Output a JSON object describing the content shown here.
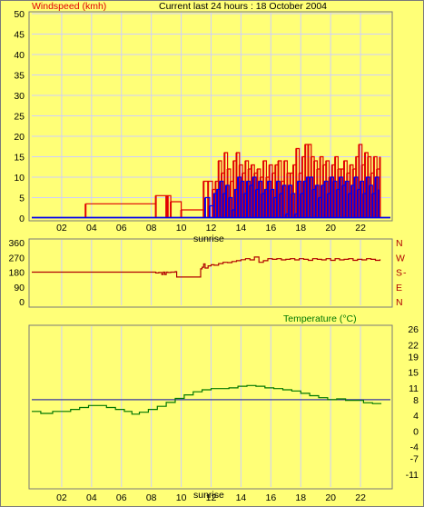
{
  "colors": {
    "background": "#ffff77",
    "grid": "#cfcfff",
    "gust": "#e00000",
    "average": "#0000ee",
    "direction": "#b00000",
    "temperature": "#007700",
    "reference": "#3a3aa0",
    "axis_text": "#000000"
  },
  "header": {
    "title": "Current last 24 hours : 18 October 2004"
  },
  "chart_data": [
    {
      "type": "bar",
      "name": "wind-speed",
      "ylabel": "Windspeed (kmh)",
      "ylim": [
        0,
        50
      ],
      "yticks": [
        0,
        5,
        10,
        15,
        20,
        25,
        30,
        35,
        40,
        45,
        50
      ],
      "xlim": [
        0,
        24
      ],
      "xticks": [
        "02",
        "04",
        "06",
        "08",
        "10",
        "12",
        "14",
        "16",
        "18",
        "20",
        "22"
      ],
      "xtick_values": [
        2,
        4,
        6,
        8,
        10,
        12,
        14,
        16,
        18,
        20,
        22
      ],
      "annotation": "sunrise",
      "annotation_x": 11.7,
      "grid": true,
      "series": [
        {
          "name": "",
          "color_key": "gust",
          "x": [
            3.6,
            8.3,
            9.0,
            9.1,
            9.3,
            10.0,
            11.5,
            11.8,
            12.1,
            12.3,
            12.5,
            12.7,
            12.9,
            13.1,
            13.3,
            13.5,
            13.7,
            13.9,
            14.1,
            14.3,
            14.5,
            14.7,
            14.9,
            15.1,
            15.3,
            15.5,
            15.7,
            15.9,
            16.1,
            16.3,
            16.5,
            16.7,
            16.9,
            17.1,
            17.3,
            17.5,
            17.7,
            17.9,
            18.1,
            18.3,
            18.5,
            18.7,
            18.9,
            19.1,
            19.3,
            19.5,
            19.7,
            19.9,
            20.1,
            20.3,
            20.5,
            20.7,
            20.9,
            21.1,
            21.3,
            21.5,
            21.7,
            21.9,
            22.1,
            22.3,
            22.5,
            22.7,
            22.9,
            23.1,
            23.3
          ],
          "values": [
            3.5,
            5.5,
            5.5,
            5.5,
            4,
            2,
            9,
            9,
            7,
            9,
            14,
            11,
            16,
            12,
            9,
            14,
            16,
            13,
            11,
            14,
            12,
            13,
            11,
            12,
            10,
            14,
            10,
            13,
            11,
            13,
            14,
            9,
            14,
            11,
            11,
            13,
            17,
            11,
            15,
            18,
            18,
            15,
            14,
            12,
            15,
            13,
            14,
            10,
            13,
            15,
            12,
            12,
            14,
            11,
            13,
            12,
            15,
            18,
            13,
            16,
            15,
            11,
            15,
            12,
            15
          ]
        },
        {
          "name": "",
          "color_key": "average",
          "x": [
            11.6,
            11.9,
            12.2,
            12.4,
            12.6,
            12.8,
            13.0,
            13.2,
            13.4,
            13.6,
            13.8,
            14.0,
            14.2,
            14.4,
            14.6,
            14.8,
            15.0,
            15.2,
            15.4,
            15.6,
            15.8,
            16.0,
            16.2,
            16.4,
            16.6,
            16.8,
            17.0,
            17.2,
            17.4,
            17.6,
            17.8,
            18.0,
            18.2,
            18.4,
            18.6,
            18.8,
            19.0,
            19.2,
            19.4,
            19.6,
            19.8,
            20.0,
            20.2,
            20.4,
            20.6,
            20.8,
            21.0,
            21.2,
            21.4,
            21.6,
            21.8,
            22.0,
            22.2,
            22.4,
            22.6,
            22.8,
            23.0,
            23.2
          ],
          "values": [
            5,
            3,
            6,
            7,
            9,
            6,
            8,
            5,
            2,
            7,
            10,
            9,
            6,
            9,
            8,
            10,
            7,
            9,
            6,
            7,
            9,
            7,
            5,
            9,
            6,
            8,
            1,
            8,
            6,
            1,
            9,
            6,
            9,
            10,
            10,
            7,
            8,
            5,
            8,
            9,
            6,
            10,
            9,
            7,
            10,
            8,
            9,
            6,
            8,
            10,
            7,
            9,
            6,
            10,
            8,
            6,
            10,
            7
          ]
        }
      ]
    },
    {
      "type": "line",
      "name": "wind-direction",
      "ylim": [
        0,
        360
      ],
      "yticks": [
        0,
        90,
        180,
        270,
        360
      ],
      "compass_labels": [
        "N",
        "W",
        "S",
        "E",
        "N"
      ],
      "compass_gap": "-",
      "xlim": [
        0,
        24
      ],
      "xtick_values": [
        2,
        4,
        6,
        8,
        10,
        12,
        14,
        16,
        18,
        20,
        22
      ],
      "grid": true,
      "series": [
        {
          "name": "",
          "color_key": "direction",
          "x": [
            0,
            8.2,
            8.3,
            8.5,
            8.7,
            8.8,
            8.9,
            9.0,
            9.1,
            9.3,
            9.6,
            9.7,
            9.8,
            11.2,
            11.3,
            11.4,
            11.5,
            11.6,
            11.8,
            12.0,
            12.2,
            12.5,
            12.8,
            13.1,
            13.4,
            13.7,
            14.0,
            14.3,
            14.6,
            14.9,
            15.2,
            15.5,
            15.8,
            16.1,
            16.4,
            16.7,
            17.0,
            17.3,
            17.6,
            17.9,
            18.2,
            18.5,
            18.8,
            19.1,
            19.4,
            19.7,
            20.0,
            20.3,
            20.6,
            20.9,
            21.2,
            21.5,
            21.8,
            22.1,
            22.4,
            22.7,
            23.0,
            23.3
          ],
          "values": [
            180,
            180,
            175,
            178,
            165,
            180,
            165,
            180,
            178,
            180,
            183,
            150,
            150,
            150,
            200,
            210,
            230,
            205,
            218,
            225,
            222,
            232,
            240,
            238,
            245,
            250,
            256,
            262,
            255,
            272,
            240,
            250,
            262,
            258,
            262,
            255,
            258,
            262,
            255,
            262,
            258,
            252,
            262,
            258,
            255,
            262,
            252,
            262,
            255,
            258,
            262,
            252,
            258,
            255,
            262,
            258,
            252,
            258
          ]
        }
      ]
    },
    {
      "type": "line",
      "name": "temperature",
      "title": "Temperature (°C)",
      "ylim": [
        -11,
        26
      ],
      "yticks": [
        -11,
        -7,
        -4,
        0,
        4,
        8,
        11,
        15,
        19,
        22,
        26
      ],
      "xlim": [
        0,
        24
      ],
      "xticks": [
        "02",
        "04",
        "06",
        "08",
        "10",
        "12",
        "14",
        "16",
        "18",
        "20",
        "22"
      ],
      "xtick_values": [
        2,
        4,
        6,
        8,
        10,
        12,
        14,
        16,
        18,
        20,
        22
      ],
      "annotation": "sunrise",
      "annotation_x": 11.7,
      "reference_line": 8,
      "grid": true,
      "series": [
        {
          "name": "",
          "color_key": "temperature",
          "x": [
            0,
            0.6,
            1.0,
            1.4,
            2.0,
            2.6,
            3.2,
            3.8,
            4.4,
            5.0,
            5.6,
            6.2,
            6.7,
            7.2,
            7.8,
            8.4,
            9.0,
            9.6,
            10.2,
            10.8,
            11.4,
            12.0,
            12.6,
            13.2,
            13.8,
            14.4,
            15.0,
            15.6,
            16.2,
            16.8,
            17.4,
            18.0,
            18.6,
            19.2,
            19.8,
            20.4,
            21.0,
            21.6,
            22.2,
            22.8,
            23.4
          ],
          "values": [
            5,
            4.5,
            4.5,
            5,
            5,
            5.5,
            6,
            6.5,
            6.5,
            6,
            5.5,
            5,
            4.3,
            4.8,
            5.5,
            6.3,
            7.3,
            8.3,
            9.2,
            10,
            10.5,
            10.8,
            10.8,
            11,
            11.4,
            11.6,
            11.4,
            11,
            10.8,
            10.5,
            10.2,
            9.6,
            9,
            8.5,
            8,
            8.2,
            7.8,
            7.8,
            7.2,
            7,
            7
          ]
        }
      ]
    }
  ]
}
